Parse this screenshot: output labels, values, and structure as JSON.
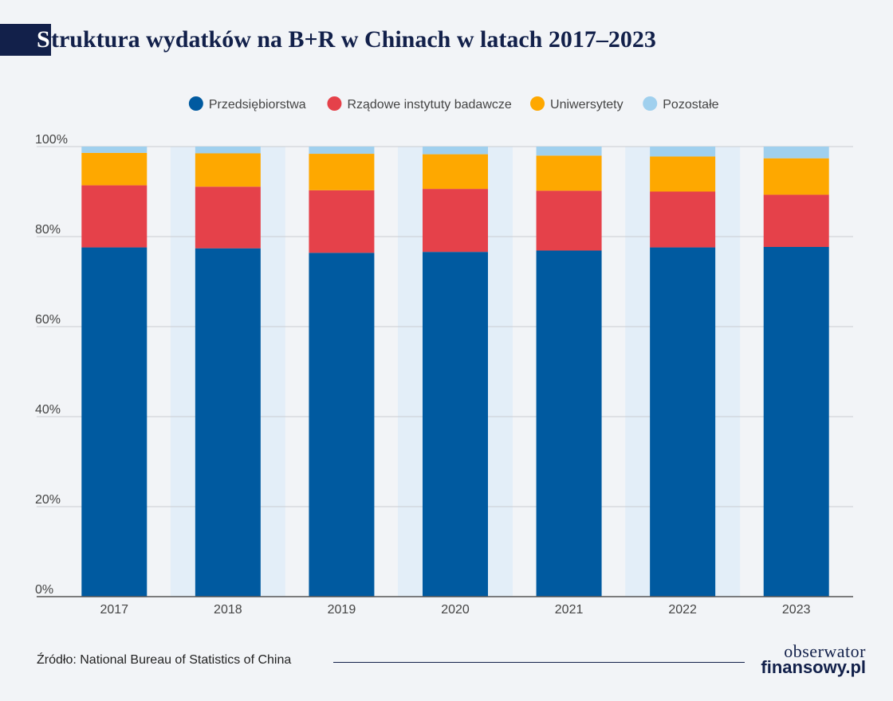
{
  "header": {
    "title_first_letter": "S",
    "title_rest": "truktura wydatków na B+R w Chinach w latach 2017–2023"
  },
  "footer": {
    "source": "Źródło: National Bureau of Statistics of China",
    "brand_line1": "obserwator",
    "brand_line2": "finansowy.pl"
  },
  "colors": {
    "background": "#f2f4f7",
    "band": "#e3eef8",
    "grid": "#c9ccd2",
    "axis": "#555555",
    "title": "#12204a"
  },
  "chart_data": {
    "type": "bar",
    "stacked": true,
    "categories": [
      "2017",
      "2018",
      "2019",
      "2020",
      "2021",
      "2022",
      "2023"
    ],
    "series": [
      {
        "name": "Przedsiębiorstwa",
        "color": "#005aa0",
        "values": [
          77.6,
          77.4,
          76.4,
          76.6,
          76.9,
          77.6,
          77.7
        ]
      },
      {
        "name": "Rządowe instytuty badawcze",
        "color": "#e5414a",
        "values": [
          13.8,
          13.7,
          13.9,
          14.0,
          13.3,
          12.4,
          11.6
        ]
      },
      {
        "name": "Uniwersytety",
        "color": "#fea800",
        "values": [
          7.2,
          7.4,
          8.1,
          7.7,
          7.8,
          7.8,
          8.1
        ]
      },
      {
        "name": "Pozostałe",
        "color": "#a0d0ee",
        "values": [
          1.4,
          1.5,
          1.6,
          1.7,
          2.0,
          2.2,
          2.6
        ]
      }
    ],
    "ylim": [
      0,
      100
    ],
    "yticks": [
      0,
      20,
      40,
      60,
      80,
      100
    ],
    "ytick_labels": [
      "0%",
      "20%",
      "40%",
      "60%",
      "80%",
      "100%"
    ],
    "xlabel": "",
    "ylabel": "",
    "grid": true,
    "legend_position": "top-center"
  }
}
